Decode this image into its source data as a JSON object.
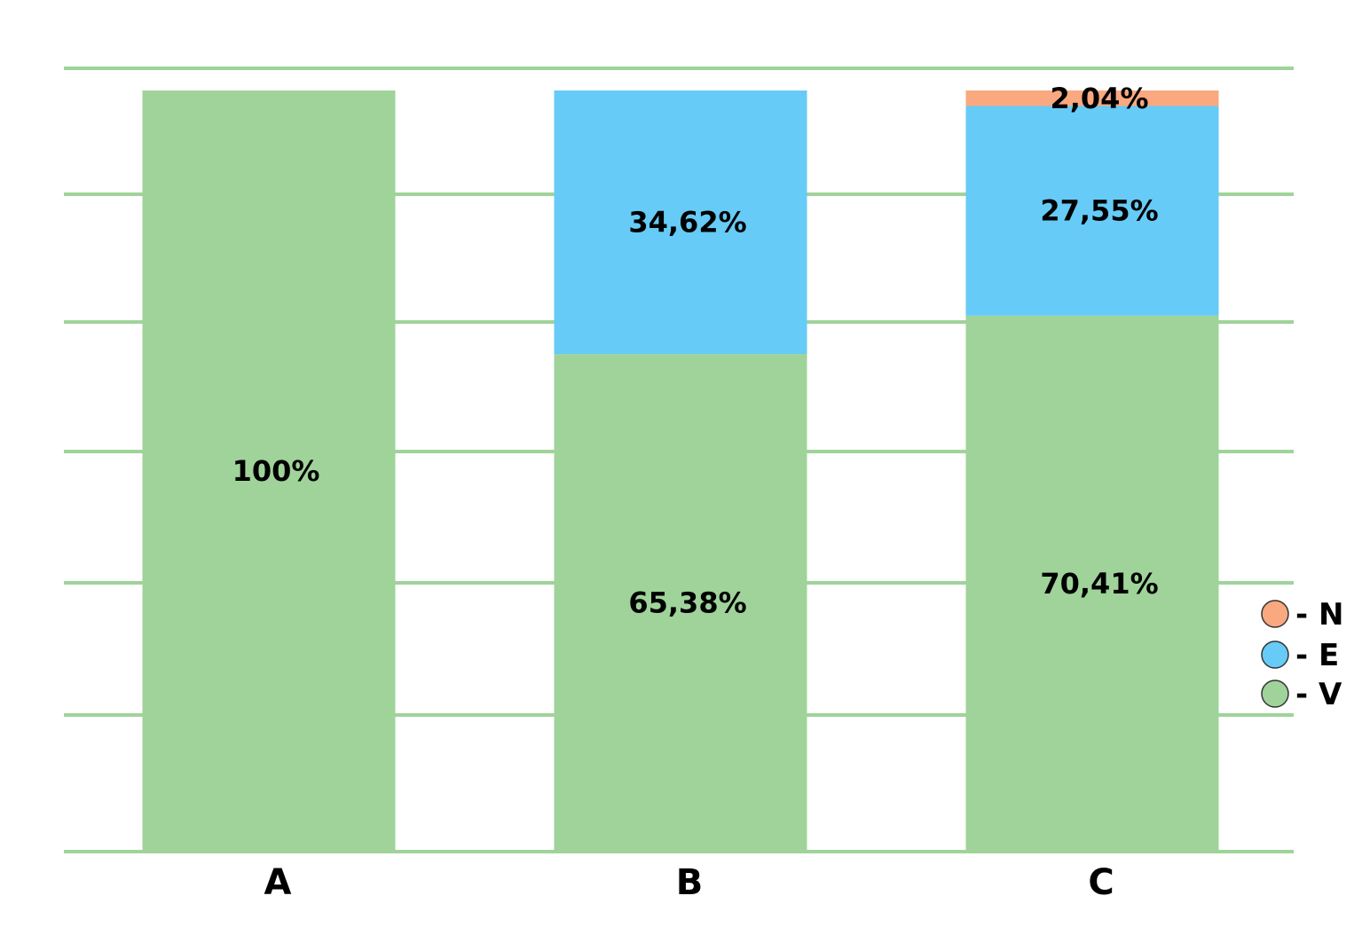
{
  "chart_data": {
    "type": "bar",
    "stacked": true,
    "categories": [
      "A",
      "B",
      "C"
    ],
    "series": [
      {
        "name": "V",
        "color": "#9fd39a",
        "values": [
          100,
          65.38,
          70.41
        ],
        "labels": [
          "100%",
          "65,38%",
          "70,41%"
        ]
      },
      {
        "name": "E",
        "color": "#66cbf6",
        "values": [
          0,
          34.62,
          27.55
        ],
        "labels": [
          "",
          "34,62%",
          "27,55%"
        ]
      },
      {
        "name": "N",
        "color": "#f9a880",
        "values": [
          0,
          0,
          2.04
        ],
        "labels": [
          "",
          "",
          "2,04%"
        ]
      }
    ],
    "legend_entries": [
      "- N",
      "- E",
      "- V"
    ],
    "legend_placement": "right",
    "ylim": [
      0,
      100
    ],
    "grid": true,
    "grid_color": "#9fd39a",
    "title": "",
    "xlabel": "",
    "ylabel": ""
  }
}
